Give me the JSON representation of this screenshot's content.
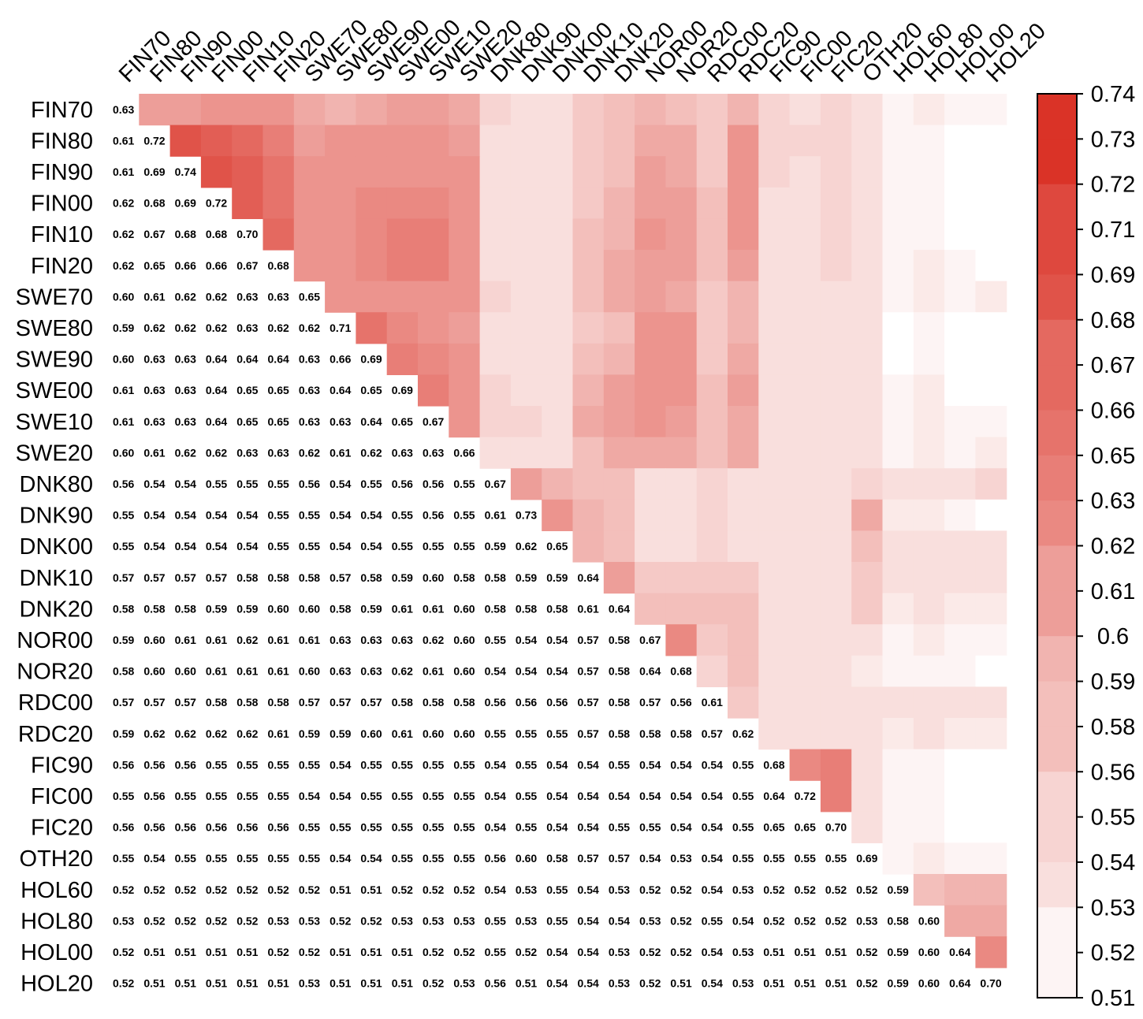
{
  "chart_data": {
    "type": "heatmap",
    "title": "",
    "xlabel": "",
    "ylabel": "",
    "labels": [
      "FIN70",
      "FIN80",
      "FIN90",
      "FIN00",
      "FIN10",
      "FIN20",
      "SWE70",
      "SWE80",
      "SWE90",
      "SWE00",
      "SWE10",
      "SWE20",
      "DNK80",
      "DNK90",
      "DNK00",
      "DNK10",
      "DNK20",
      "NOR00",
      "NOR20",
      "RDC00",
      "RDC20",
      "FIC90",
      "FIC00",
      "FIC20",
      "OTH20",
      "HOL60",
      "HOL80",
      "HOL00",
      "HOL20"
    ],
    "lower_triangle_values": [
      [
        0.63
      ],
      [
        0.61,
        0.72
      ],
      [
        0.61,
        0.69,
        0.74
      ],
      [
        0.62,
        0.68,
        0.69,
        0.72
      ],
      [
        0.62,
        0.67,
        0.68,
        0.68,
        0.7
      ],
      [
        0.62,
        0.65,
        0.66,
        0.66,
        0.67,
        0.68
      ],
      [
        0.6,
        0.61,
        0.62,
        0.62,
        0.63,
        0.63,
        0.65
      ],
      [
        0.59,
        0.62,
        0.62,
        0.62,
        0.63,
        0.62,
        0.62,
        0.71
      ],
      [
        0.6,
        0.63,
        0.63,
        0.64,
        0.64,
        0.64,
        0.63,
        0.66,
        0.69
      ],
      [
        0.61,
        0.63,
        0.63,
        0.64,
        0.65,
        0.65,
        0.63,
        0.64,
        0.65,
        0.69
      ],
      [
        0.61,
        0.63,
        0.63,
        0.64,
        0.65,
        0.65,
        0.63,
        0.63,
        0.64,
        0.65,
        0.67
      ],
      [
        0.6,
        0.61,
        0.62,
        0.62,
        0.63,
        0.63,
        0.62,
        0.61,
        0.62,
        0.63,
        0.63,
        0.66
      ],
      [
        0.56,
        0.54,
        0.54,
        0.55,
        0.55,
        0.55,
        0.56,
        0.54,
        0.55,
        0.56,
        0.56,
        0.55,
        0.67
      ],
      [
        0.55,
        0.54,
        0.54,
        0.54,
        0.54,
        0.55,
        0.55,
        0.54,
        0.54,
        0.55,
        0.56,
        0.55,
        0.61,
        0.73
      ],
      [
        0.55,
        0.54,
        0.54,
        0.54,
        0.54,
        0.55,
        0.55,
        0.54,
        0.54,
        0.55,
        0.55,
        0.55,
        0.59,
        0.62,
        0.65
      ],
      [
        0.57,
        0.57,
        0.57,
        0.57,
        0.58,
        0.58,
        0.58,
        0.57,
        0.58,
        0.59,
        0.6,
        0.58,
        0.58,
        0.59,
        0.59,
        0.64
      ],
      [
        0.58,
        0.58,
        0.58,
        0.59,
        0.59,
        0.6,
        0.6,
        0.58,
        0.59,
        0.61,
        0.61,
        0.6,
        0.58,
        0.58,
        0.58,
        0.61,
        0.64
      ],
      [
        0.59,
        0.6,
        0.61,
        0.61,
        0.62,
        0.61,
        0.61,
        0.63,
        0.63,
        0.63,
        0.62,
        0.6,
        0.55,
        0.54,
        0.54,
        0.57,
        0.58,
        0.67
      ],
      [
        0.58,
        0.6,
        0.6,
        0.61,
        0.61,
        0.61,
        0.6,
        0.63,
        0.63,
        0.62,
        0.61,
        0.6,
        0.54,
        0.54,
        0.54,
        0.57,
        0.58,
        0.64,
        0.68
      ],
      [
        0.57,
        0.57,
        0.57,
        0.58,
        0.58,
        0.58,
        0.57,
        0.57,
        0.57,
        0.58,
        0.58,
        0.58,
        0.56,
        0.56,
        0.56,
        0.57,
        0.58,
        0.57,
        0.56,
        0.61
      ],
      [
        0.59,
        0.62,
        0.62,
        0.62,
        0.62,
        0.61,
        0.59,
        0.59,
        0.6,
        0.61,
        0.6,
        0.6,
        0.55,
        0.55,
        0.55,
        0.57,
        0.58,
        0.58,
        0.58,
        0.57,
        0.62
      ],
      [
        0.56,
        0.56,
        0.56,
        0.55,
        0.55,
        0.55,
        0.55,
        0.54,
        0.55,
        0.55,
        0.55,
        0.55,
        0.54,
        0.55,
        0.54,
        0.54,
        0.55,
        0.54,
        0.54,
        0.54,
        0.55,
        0.68
      ],
      [
        0.55,
        0.56,
        0.55,
        0.55,
        0.55,
        0.55,
        0.54,
        0.54,
        0.55,
        0.55,
        0.55,
        0.55,
        0.54,
        0.55,
        0.54,
        0.54,
        0.54,
        0.54,
        0.54,
        0.54,
        0.55,
        0.64,
        0.72
      ],
      [
        0.56,
        0.56,
        0.56,
        0.56,
        0.56,
        0.56,
        0.55,
        0.55,
        0.55,
        0.55,
        0.55,
        0.55,
        0.54,
        0.55,
        0.54,
        0.54,
        0.55,
        0.55,
        0.54,
        0.54,
        0.55,
        0.65,
        0.65,
        0.7
      ],
      [
        0.55,
        0.54,
        0.55,
        0.55,
        0.55,
        0.55,
        0.55,
        0.54,
        0.54,
        0.55,
        0.55,
        0.55,
        0.56,
        0.6,
        0.58,
        0.57,
        0.57,
        0.54,
        0.53,
        0.54,
        0.55,
        0.55,
        0.55,
        0.55,
        0.69
      ],
      [
        0.52,
        0.52,
        0.52,
        0.52,
        0.52,
        0.52,
        0.52,
        0.51,
        0.51,
        0.52,
        0.52,
        0.52,
        0.54,
        0.53,
        0.55,
        0.54,
        0.53,
        0.52,
        0.52,
        0.54,
        0.53,
        0.52,
        0.52,
        0.52,
        0.52,
        0.59
      ],
      [
        0.53,
        0.52,
        0.52,
        0.52,
        0.52,
        0.53,
        0.53,
        0.52,
        0.52,
        0.53,
        0.53,
        0.53,
        0.55,
        0.53,
        0.55,
        0.54,
        0.54,
        0.53,
        0.52,
        0.55,
        0.54,
        0.52,
        0.52,
        0.52,
        0.53,
        0.58,
        0.6
      ],
      [
        0.52,
        0.51,
        0.51,
        0.51,
        0.51,
        0.52,
        0.52,
        0.51,
        0.51,
        0.51,
        0.52,
        0.52,
        0.55,
        0.52,
        0.54,
        0.54,
        0.53,
        0.52,
        0.52,
        0.54,
        0.53,
        0.51,
        0.51,
        0.51,
        0.52,
        0.59,
        0.6,
        0.64
      ],
      [
        0.52,
        0.51,
        0.51,
        0.51,
        0.51,
        0.51,
        0.53,
        0.51,
        0.51,
        0.51,
        0.52,
        0.53,
        0.56,
        0.51,
        0.54,
        0.54,
        0.53,
        0.52,
        0.51,
        0.54,
        0.53,
        0.51,
        0.51,
        0.51,
        0.52,
        0.59,
        0.6,
        0.64,
        0.7
      ]
    ],
    "colorbar": {
      "min": 0.51,
      "max": 0.74,
      "tick_labels": [
        "0.74",
        "0.73",
        "0.72",
        "0.71",
        "0.69",
        "0.68",
        "0.67",
        "0.66",
        "0.65",
        "0.63",
        "0.62",
        "0.61",
        "0.6",
        "0.59",
        "0.58",
        "0.56",
        "0.55",
        "0.54",
        "0.53",
        "0.52",
        "0.51"
      ],
      "steps": 20,
      "color_low": "#ffffff",
      "color_high": "#d8281c"
    },
    "legend_position": "right"
  }
}
